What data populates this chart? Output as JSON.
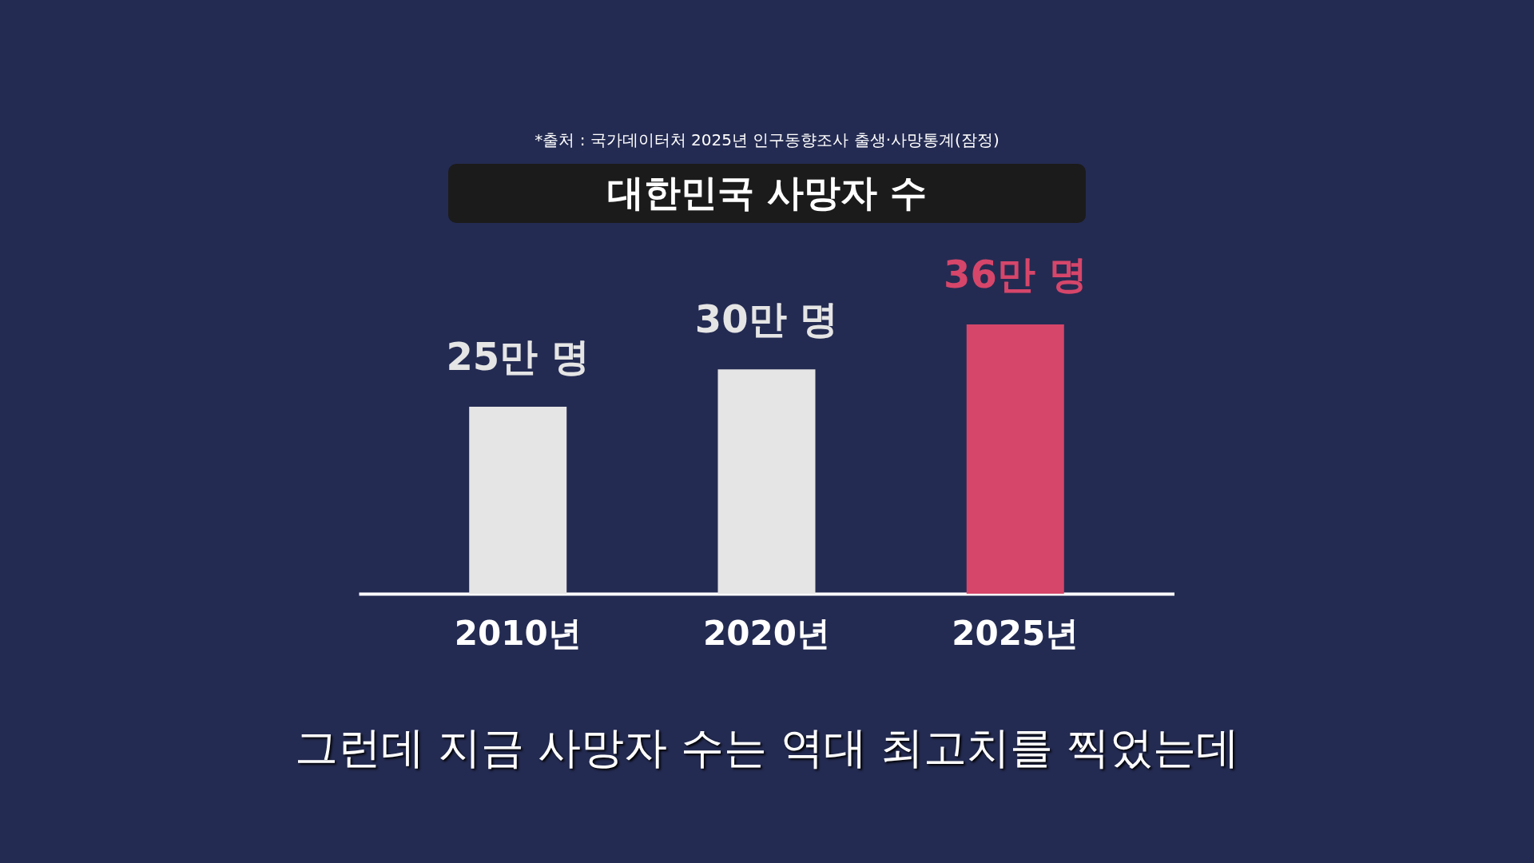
{
  "chart_data": {
    "type": "bar",
    "title": "대한민국 사망자 수",
    "categories": [
      "2010년",
      "2020년",
      "2025년"
    ],
    "values": [
      25,
      30,
      36
    ],
    "colors": [
      "#e5e5e5",
      "#e5e5e5",
      "#d6466a"
    ],
    "value_labels": [
      "25만 명",
      "30만 명",
      "36만 명"
    ],
    "annotations": [
      "*출처 : 국가데이터처 2025년 인구동향조사 출생·사망통계(잠정)",
      "그런데 지금 사망자 수는 역대 최고치를 찍었는데"
    ],
    "xlabel": null
  }
}
